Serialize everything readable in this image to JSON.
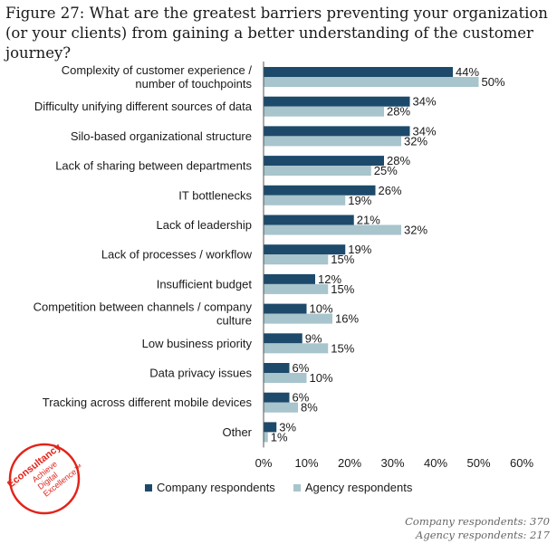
{
  "title": "Figure 27: What are the greatest barriers preventing your organization (or your clients) from gaining a better understanding of the customer journey?",
  "logo": {
    "brand": "Econsultancy",
    "tagline": [
      "Achieve",
      "Digital",
      "Excellence™"
    ],
    "color": "#e2231a"
  },
  "colors": {
    "company": "#1d4a6b",
    "agency": "#a8c4cc"
  },
  "chart_data": {
    "type": "bar",
    "orientation": "horizontal",
    "categories": [
      [
        "Complexity of customer experience /",
        "number of touchpoints"
      ],
      [
        "Difficulty unifying different sources of data"
      ],
      [
        "Silo-based organizational structure"
      ],
      [
        "Lack of sharing between departments"
      ],
      [
        "IT bottlenecks"
      ],
      [
        "Lack of leadership"
      ],
      [
        "Lack of processes / workflow"
      ],
      [
        "Insufficient budget"
      ],
      [
        "Competition between channels / company",
        "culture"
      ],
      [
        "Low business priority"
      ],
      [
        "Data privacy issues"
      ],
      [
        "Tracking across different mobile devices"
      ],
      [
        "Other"
      ]
    ],
    "series": [
      {
        "name": "Company respondents",
        "values": [
          44,
          34,
          34,
          28,
          26,
          21,
          19,
          12,
          10,
          9,
          6,
          6,
          3
        ],
        "labels": [
          "44%",
          "34%",
          "34%",
          "28%",
          "26%",
          "21%",
          "19%",
          "12%",
          "10%",
          "9%",
          "6%",
          "6%",
          "3%"
        ]
      },
      {
        "name": "Agency respondents",
        "values": [
          50,
          28,
          32,
          25,
          19,
          32,
          15,
          15,
          16,
          15,
          10,
          8,
          1
        ],
        "labels": [
          "50%",
          "28%",
          "32%",
          "25%",
          "19%",
          "32%",
          "15%",
          "15%",
          "16%",
          "15%",
          "10%",
          "8%",
          "1%"
        ]
      }
    ],
    "xlim": [
      0,
      60
    ],
    "xticks": [
      0,
      10,
      20,
      30,
      40,
      50,
      60
    ],
    "xtick_labels": [
      "0%",
      "10%",
      "20%",
      "30%",
      "40%",
      "50%",
      "60%"
    ],
    "grid": false,
    "legend_position": "bottom"
  },
  "footnote": [
    "Company respondents: 370",
    "Agency respondents: 217"
  ]
}
